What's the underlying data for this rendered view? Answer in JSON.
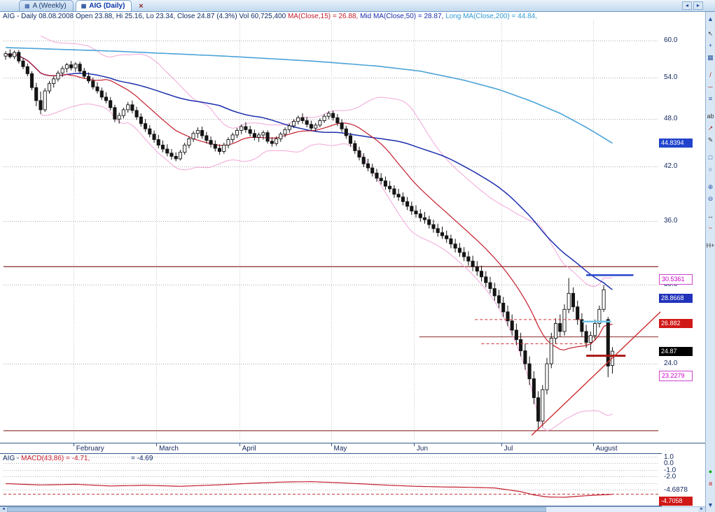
{
  "tabbar": {
    "tabs": [
      {
        "label": "A (Weekly)"
      },
      {
        "label": "AIG (Daily)"
      }
    ],
    "tab_icon_glyph": "▦",
    "close_glyph": "×",
    "scroll_left": "◄",
    "scroll_right": "►"
  },
  "header": {
    "main": "AIG - Daily 08.08.2008 Open 23.88, Hi 25.16, Lo 23.34, Close 24.87 (4.3%) Vol 60,725,400 ",
    "ma15": "MA(Close,15) = 26.88, ",
    "ma50": "Mid MA(Close,50) = 28.87, ",
    "ma200": "Long MA(Close,200) = 44.84, "
  },
  "price_axis": {
    "ticks": [
      {
        "label": "60.0",
        "value": 60.0
      },
      {
        "label": "54.0",
        "value": 54.0
      },
      {
        "label": "48.0",
        "value": 48.0
      },
      {
        "label": "42.0",
        "value": 42.0
      },
      {
        "label": "36.0",
        "value": 36.0
      },
      {
        "label": "30.0",
        "value": 30.0
      },
      {
        "label": "24.0",
        "value": 24.0
      }
    ],
    "tags": [
      {
        "text": "44.8394",
        "value": 44.8394,
        "bg": "#2244cc",
        "fg": "#ffffff"
      },
      {
        "text": "30.5361",
        "value": 30.5361,
        "bg": "#ffffff",
        "fg": "#cc00cc",
        "border": "#cc44cc"
      },
      {
        "text": "28.8668",
        "value": 28.8668,
        "bg": "#2233bb",
        "fg": "#ffffff"
      },
      {
        "text": "26.882",
        "value": 26.882,
        "bg": "#d01818",
        "fg": "#ffffff"
      },
      {
        "text": "24.87",
        "value": 24.87,
        "bg": "#000000",
        "fg": "#ffffff"
      },
      {
        "text": "23.2279",
        "value": 23.2279,
        "bg": "#ffffff",
        "fg": "#cc00cc",
        "border": "#cc44cc"
      }
    ]
  },
  "chart_data": {
    "type": "candlestick",
    "symbol": "AIG",
    "interval": "Daily",
    "scale": "log",
    "price_range": [
      19.3,
      63.4
    ],
    "slots": 150,
    "last_bar": {
      "date": "08.08.2008",
      "open": 23.88,
      "high": 25.16,
      "low": 23.34,
      "close": 24.87,
      "change_pct": 4.3,
      "volume": 60725400
    },
    "months": [
      {
        "label": "February",
        "index": 16
      },
      {
        "label": "March",
        "index": 35
      },
      {
        "label": "April",
        "index": 54
      },
      {
        "label": "May",
        "index": 75
      },
      {
        "label": "Jun",
        "index": 94
      },
      {
        "label": "Jul",
        "index": 114
      },
      {
        "label": "August",
        "index": 135
      }
    ],
    "grid_prices": [
      24,
      30,
      36,
      42,
      48,
      54,
      60
    ],
    "candles": [
      [
        57.4,
        58.2,
        56.8,
        57.8
      ],
      [
        57.8,
        58.5,
        57.0,
        57.3
      ],
      [
        57.3,
        58.3,
        56.9,
        58.0
      ],
      [
        58.0,
        58.4,
        56.2,
        56.6
      ],
      [
        56.6,
        57.1,
        55.3,
        55.7
      ],
      [
        55.7,
        56.2,
        54.2,
        54.6
      ],
      [
        54.6,
        55.0,
        52.1,
        52.5
      ],
      [
        52.5,
        53.2,
        49.8,
        50.6
      ],
      [
        50.6,
        51.9,
        48.7,
        49.3
      ],
      [
        49.3,
        52.4,
        49.0,
        52.0
      ],
      [
        52.0,
        53.5,
        51.6,
        53.1
      ],
      [
        53.1,
        54.2,
        52.5,
        53.8
      ],
      [
        53.8,
        55.1,
        53.4,
        54.7
      ],
      [
        54.7,
        55.8,
        54.1,
        55.4
      ],
      [
        55.4,
        56.3,
        54.8,
        56.0
      ],
      [
        56.0,
        56.6,
        55.1,
        55.5
      ],
      [
        55.5,
        56.4,
        54.9,
        56.1
      ],
      [
        56.1,
        56.5,
        54.6,
        55.0
      ],
      [
        55.0,
        55.5,
        53.8,
        54.2
      ],
      [
        54.2,
        54.8,
        53.1,
        53.5
      ],
      [
        53.5,
        54.0,
        52.2,
        52.6
      ],
      [
        52.6,
        53.3,
        51.6,
        52.0
      ],
      [
        52.0,
        52.5,
        50.7,
        51.1
      ],
      [
        51.1,
        51.8,
        50.2,
        50.6
      ],
      [
        50.6,
        51.1,
        49.2,
        49.6
      ],
      [
        49.6,
        50.0,
        47.6,
        48.0
      ],
      [
        48.0,
        48.9,
        47.4,
        48.5
      ],
      [
        48.5,
        49.6,
        48.1,
        49.3
      ],
      [
        49.3,
        50.4,
        48.9,
        50.0
      ],
      [
        50.0,
        50.6,
        48.8,
        49.2
      ],
      [
        49.2,
        49.7,
        47.9,
        48.3
      ],
      [
        48.3,
        48.8,
        47.0,
        47.4
      ],
      [
        47.4,
        48.0,
        46.3,
        46.7
      ],
      [
        46.7,
        47.2,
        45.6,
        46.0
      ],
      [
        46.0,
        46.5,
        44.9,
        45.3
      ],
      [
        45.3,
        45.9,
        44.2,
        44.6
      ],
      [
        44.6,
        45.2,
        43.7,
        44.1
      ],
      [
        44.1,
        44.7,
        43.2,
        43.6
      ],
      [
        43.6,
        44.1,
        42.8,
        43.2
      ],
      [
        43.2,
        43.7,
        42.6,
        42.9
      ],
      [
        42.9,
        44.0,
        42.7,
        43.7
      ],
      [
        43.7,
        44.9,
        43.4,
        44.6
      ],
      [
        44.6,
        45.7,
        44.2,
        45.4
      ],
      [
        45.4,
        46.4,
        45.0,
        46.1
      ],
      [
        46.1,
        46.9,
        45.5,
        46.5
      ],
      [
        46.5,
        47.0,
        45.4,
        45.8
      ],
      [
        45.8,
        46.3,
        44.8,
        45.2
      ],
      [
        45.2,
        45.7,
        44.3,
        44.7
      ],
      [
        44.7,
        45.2,
        43.8,
        44.2
      ],
      [
        44.2,
        44.7,
        43.4,
        43.8
      ],
      [
        43.8,
        44.9,
        43.5,
        44.6
      ],
      [
        44.6,
        45.6,
        44.2,
        45.3
      ],
      [
        45.3,
        46.2,
        44.9,
        45.9
      ],
      [
        45.9,
        46.8,
        45.5,
        46.5
      ],
      [
        46.5,
        47.3,
        46.0,
        47.0
      ],
      [
        47.0,
        47.6,
        46.2,
        46.6
      ],
      [
        46.6,
        47.1,
        45.7,
        46.1
      ],
      [
        46.1,
        46.6,
        45.2,
        45.6
      ],
      [
        45.6,
        46.2,
        45.0,
        45.9
      ],
      [
        45.9,
        46.5,
        45.3,
        46.2
      ],
      [
        46.2,
        46.5,
        44.8,
        45.1
      ],
      [
        45.1,
        45.6,
        44.4,
        44.8
      ],
      [
        44.8,
        45.7,
        44.5,
        45.4
      ],
      [
        45.4,
        46.3,
        45.0,
        46.0
      ],
      [
        46.0,
        46.9,
        45.6,
        46.6
      ],
      [
        46.6,
        47.4,
        46.2,
        47.1
      ],
      [
        47.1,
        48.0,
        46.8,
        47.7
      ],
      [
        47.7,
        48.5,
        47.3,
        48.2
      ],
      [
        48.2,
        48.8,
        47.4,
        47.8
      ],
      [
        47.8,
        48.3,
        46.9,
        47.3
      ],
      [
        47.3,
        47.8,
        46.4,
        46.8
      ],
      [
        46.8,
        47.5,
        46.4,
        47.2
      ],
      [
        47.2,
        48.1,
        46.9,
        47.8
      ],
      [
        47.8,
        48.7,
        47.5,
        48.4
      ],
      [
        48.4,
        49.1,
        48.0,
        48.8
      ],
      [
        48.8,
        49.2,
        47.8,
        48.2
      ],
      [
        48.2,
        48.7,
        47.1,
        47.5
      ],
      [
        47.5,
        48.0,
        46.3,
        46.7
      ],
      [
        46.7,
        47.1,
        45.4,
        45.8
      ],
      [
        45.8,
        46.2,
        44.4,
        44.8
      ],
      [
        44.8,
        45.2,
        43.5,
        43.9
      ],
      [
        43.9,
        44.4,
        42.7,
        43.1
      ],
      [
        43.1,
        43.6,
        41.9,
        42.3
      ],
      [
        42.3,
        42.9,
        41.4,
        41.8
      ],
      [
        41.8,
        42.3,
        40.8,
        41.2
      ],
      [
        41.2,
        41.7,
        40.2,
        40.6
      ],
      [
        40.6,
        41.2,
        39.9,
        40.3
      ],
      [
        40.3,
        40.8,
        39.3,
        39.7
      ],
      [
        39.7,
        40.3,
        39.0,
        39.4
      ],
      [
        39.4,
        39.8,
        38.4,
        38.8
      ],
      [
        38.8,
        39.4,
        38.1,
        38.5
      ],
      [
        38.5,
        39.0,
        37.6,
        38.0
      ],
      [
        38.0,
        38.5,
        37.1,
        37.5
      ],
      [
        37.5,
        38.0,
        36.6,
        37.0
      ],
      [
        37.0,
        37.6,
        36.3,
        36.7
      ],
      [
        36.7,
        37.2,
        35.9,
        36.3
      ],
      [
        36.3,
        36.9,
        35.7,
        36.1
      ],
      [
        36.1,
        36.5,
        35.2,
        35.6
      ],
      [
        35.6,
        36.1,
        34.8,
        35.2
      ],
      [
        35.2,
        35.7,
        34.4,
        34.8
      ],
      [
        34.8,
        35.4,
        34.2,
        34.5
      ],
      [
        34.5,
        35.0,
        33.8,
        34.2
      ],
      [
        34.2,
        34.6,
        33.3,
        33.7
      ],
      [
        33.7,
        34.2,
        32.9,
        33.3
      ],
      [
        33.3,
        33.8,
        32.5,
        32.9
      ],
      [
        32.9,
        33.4,
        32.1,
        32.5
      ],
      [
        32.5,
        33.0,
        31.7,
        32.1
      ],
      [
        32.1,
        32.6,
        31.2,
        31.6
      ],
      [
        31.6,
        32.1,
        30.8,
        31.2
      ],
      [
        31.2,
        31.7,
        30.3,
        30.7
      ],
      [
        30.7,
        31.2,
        29.8,
        30.2
      ],
      [
        30.2,
        30.7,
        29.3,
        29.7
      ],
      [
        29.7,
        30.2,
        28.7,
        29.1
      ],
      [
        29.1,
        29.6,
        28.1,
        28.5
      ],
      [
        28.5,
        29.0,
        27.4,
        27.8
      ],
      [
        27.8,
        28.3,
        26.7,
        27.1
      ],
      [
        27.1,
        27.6,
        26.0,
        26.4
      ],
      [
        26.4,
        26.9,
        25.3,
        25.7
      ],
      [
        25.7,
        26.2,
        24.5,
        24.9
      ],
      [
        24.9,
        25.4,
        23.6,
        24.0
      ],
      [
        24.0,
        24.5,
        22.6,
        23.0
      ],
      [
        23.0,
        23.5,
        21.4,
        21.8
      ],
      [
        21.8,
        22.2,
        19.9,
        20.4
      ],
      [
        20.4,
        22.6,
        20.1,
        22.3
      ],
      [
        22.3,
        24.4,
        22.0,
        24.0
      ],
      [
        24.0,
        26.2,
        23.7,
        25.8
      ],
      [
        25.8,
        27.3,
        25.4,
        26.9
      ],
      [
        26.9,
        27.6,
        25.9,
        26.3
      ],
      [
        26.3,
        28.4,
        26.0,
        28.0
      ],
      [
        28.0,
        30.6,
        27.7,
        29.3
      ],
      [
        29.3,
        29.8,
        27.8,
        28.2
      ],
      [
        28.2,
        28.7,
        26.8,
        27.2
      ],
      [
        27.2,
        27.7,
        25.9,
        26.3
      ],
      [
        26.3,
        26.8,
        25.1,
        25.5
      ],
      [
        25.5,
        26.3,
        24.9,
        26.0
      ],
      [
        26.0,
        27.2,
        25.7,
        26.9
      ],
      [
        26.9,
        28.3,
        26.6,
        28.0
      ],
      [
        28.0,
        30.0,
        27.8,
        29.6
      ],
      [
        27.2,
        27.4,
        23.1,
        23.84
      ],
      [
        23.88,
        25.16,
        23.34,
        24.87
      ]
    ],
    "overlays": {
      "ma15": {
        "period": 15,
        "color": "#c51d2c",
        "current": 26.88
      },
      "ma50": {
        "period": 50,
        "color": "#1c2fae",
        "current": 28.87
      },
      "ma200": {
        "color": "#4aa3d8",
        "current": 44.84,
        "points": [
          [
            0,
            58.8
          ],
          [
            25,
            58.2
          ],
          [
            50,
            57.4
          ],
          [
            70,
            56.6
          ],
          [
            85,
            55.8
          ],
          [
            95,
            55.0
          ],
          [
            105,
            53.6
          ],
          [
            113,
            52.2
          ],
          [
            120,
            50.6
          ],
          [
            127,
            48.8
          ],
          [
            133,
            46.9
          ],
          [
            139,
            44.84
          ]
        ]
      },
      "bollinger": {
        "period": 20,
        "mult": 2,
        "color": "#f2a6d8",
        "upper_current": 30.5361,
        "lower_current": 23.2279
      }
    },
    "annotations": [
      {
        "type": "hline",
        "name": "resistance-level-line",
        "value": 31.6,
        "color": "#8a2a2a",
        "width": 1.2,
        "behind": true
      },
      {
        "type": "hline",
        "name": "support-level-line",
        "value": 19.85,
        "color": "#8a2a2a",
        "width": 1.2,
        "behind": true
      },
      {
        "type": "hline",
        "name": "minor-level-line",
        "value": 25.9,
        "x1": 0.635,
        "x2": 1,
        "color": "#8a2a2a",
        "width": 1,
        "behind": true
      },
      {
        "type": "hline",
        "name": "upper-dashed-level",
        "value": 27.2,
        "x1": 0.72,
        "x2": 0.885,
        "color": "#d23434",
        "width": 1,
        "dash": true
      },
      {
        "type": "hline",
        "name": "lower-dashed-level",
        "value": 25.4,
        "x1": 0.73,
        "x2": 0.9,
        "color": "#d23434",
        "width": 1,
        "dash": true
      },
      {
        "type": "hline",
        "name": "red-measure-segment",
        "value": 24.55,
        "x1": 0.89,
        "x2": 0.95,
        "color": "#aa1515",
        "width": 3
      },
      {
        "type": "hline",
        "name": "blue-drawn-line",
        "value": 30.85,
        "x1": 0.89,
        "x2": 0.962,
        "color": "#2547cc",
        "width": 2.5
      },
      {
        "type": "hline",
        "name": "cyan-drawn-line",
        "value": 27.05,
        "x1": 0.884,
        "x2": 0.928,
        "color": "#6fc3e8",
        "width": 2.5
      },
      {
        "type": "trend",
        "name": "ascending-trendline",
        "p1": [
          120.5,
          19.6
        ],
        "p2": [
          150,
          27.8
        ],
        "color": "#cc2a2a",
        "width": 1.4
      }
    ]
  },
  "macd": {
    "title_prefix": "AIG - ",
    "title_indicator": "MACD(43,86) = -4.71,",
    "title_signal": "= -4.69",
    "value": -4.71,
    "signal": -4.69,
    "grid_values": [
      1,
      0,
      -1,
      -2,
      -3,
      -4
    ],
    "ticks": [
      {
        "label": "1.0",
        "value": 1
      },
      {
        "label": "0.0",
        "value": 0
      },
      {
        "label": "-1.0",
        "value": -1
      },
      {
        "label": "-2.0",
        "value": -2
      }
    ],
    "signal_level": -4.6878,
    "signal_label": "-4.6878",
    "last_value_label": "-4.7058",
    "last_tag_bg": "#d01818",
    "series": [
      [
        0,
        -3.1
      ],
      [
        8,
        -3.3
      ],
      [
        16,
        -3.2
      ],
      [
        24,
        -3.45
      ],
      [
        32,
        -3.35
      ],
      [
        40,
        -3.5
      ],
      [
        48,
        -3.3
      ],
      [
        56,
        -3.05
      ],
      [
        64,
        -2.85
      ],
      [
        70,
        -2.8
      ],
      [
        76,
        -2.95
      ],
      [
        82,
        -3.15
      ],
      [
        88,
        -3.35
      ],
      [
        94,
        -3.5
      ],
      [
        100,
        -3.6
      ],
      [
        106,
        -3.65
      ],
      [
        112,
        -3.75
      ],
      [
        118,
        -4.3
      ],
      [
        121,
        -4.8
      ],
      [
        124,
        -5.1
      ],
      [
        128,
        -5.15
      ],
      [
        131,
        -5.0
      ],
      [
        134,
        -4.88
      ],
      [
        137,
        -4.78
      ],
      [
        139,
        -4.71
      ]
    ]
  },
  "toolbar": {
    "icons": [
      {
        "name": "scroll-up-icon",
        "glyph": "▲",
        "color": "#2a52a0"
      },
      {
        "name": "pointer-icon",
        "glyph": "↖",
        "color": "#333333",
        "gap": 4
      },
      {
        "name": "crosshair-icon",
        "glyph": "+",
        "color": "#2a52a0"
      },
      {
        "name": "chart-style-icon",
        "glyph": "▦",
        "color": "#2a52a0"
      },
      {
        "name": "trendline-icon",
        "glyph": "/",
        "color": "#aa2222",
        "gap": 8
      },
      {
        "name": "horizontal-line-icon",
        "glyph": "─",
        "color": "#aa2222"
      },
      {
        "name": "channel-icon",
        "glyph": "≡",
        "color": "#2a52a0"
      },
      {
        "name": "text-tool-icon",
        "glyph": "ab",
        "color": "#333333",
        "gap": 8
      },
      {
        "name": "arrow-tool-icon",
        "glyph": "↗",
        "color": "#aa2222"
      },
      {
        "name": "pencil-icon",
        "glyph": "✎",
        "color": "#333333"
      },
      {
        "name": "rectangle-icon",
        "glyph": "□",
        "color": "#2a52a0",
        "gap": 8
      },
      {
        "name": "ellipse-icon",
        "glyph": "○",
        "color": "#2a52a0"
      },
      {
        "name": "zoom-in-icon",
        "glyph": "⊕",
        "color": "#2a52a0",
        "gap": 8
      },
      {
        "name": "zoom-out-icon",
        "glyph": "⊖",
        "color": "#2a52a0"
      },
      {
        "name": "pan-icon",
        "glyph": "↔",
        "color": "#333333",
        "gap": 8
      },
      {
        "name": "wave-icon",
        "glyph": "~",
        "color": "#aa2222"
      },
      {
        "name": "price-label-icon",
        "glyph": "H+",
        "color": "#333333",
        "gap": 8
      },
      {
        "name": "go-indicator-icon",
        "glyph": "●",
        "color": "#11aa11",
        "pin": true
      },
      {
        "name": "annotation-icon",
        "glyph": "a",
        "color": "#cc2222"
      },
      {
        "name": "scroll-down-icon",
        "glyph": "▼",
        "color": "#2a52a0",
        "gap": 14
      }
    ]
  },
  "hscroll": {
    "left_glyph": "◄",
    "right_glyph": "►"
  }
}
